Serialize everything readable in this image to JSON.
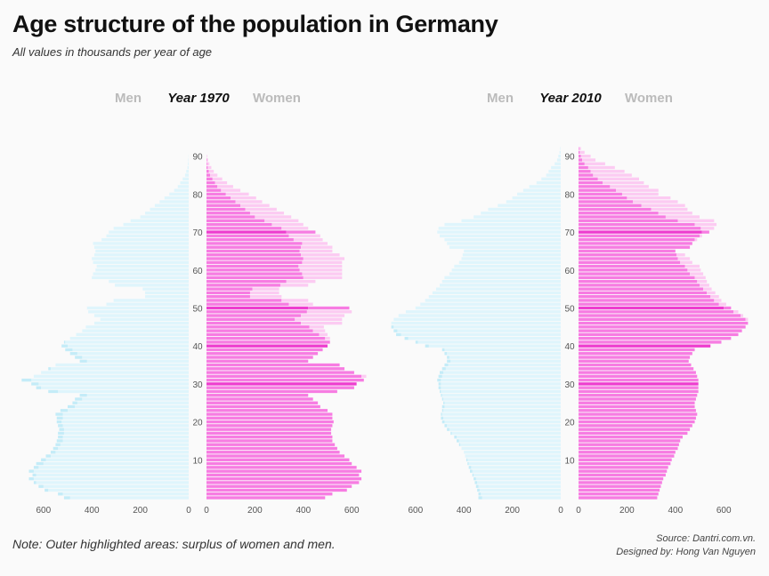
{
  "title": "Age structure of the population in Germany",
  "subtitle": "All values in thousands per year of age",
  "note": "Note: Outer highlighted areas: surplus of women and men.",
  "source": "Source: Dantri.com.vn.",
  "designer": "Designed by: Hong Van Nguyen",
  "colors": {
    "men": "#dff5fc",
    "men_surplus": "#c4ecf8",
    "women": "#f77ce2",
    "women_surplus": "#fccbf2",
    "highlight_women": "#ee3dcf",
    "text_gray": "#bbbbbb"
  },
  "chart_data": [
    {
      "type": "population-pyramid",
      "year_label": "Year 1970",
      "men_label": "Men",
      "women_label": "Women",
      "age_ticks": [
        10,
        20,
        30,
        40,
        50,
        60,
        70,
        80,
        90
      ],
      "x_ticks_men": [
        600,
        400,
        200,
        0
      ],
      "x_ticks_women": [
        0,
        200,
        400,
        600
      ],
      "xlim": [
        0,
        700
      ],
      "ages": [
        0,
        1,
        2,
        3,
        4,
        5,
        6,
        7,
        8,
        9,
        10,
        11,
        12,
        13,
        14,
        15,
        16,
        17,
        18,
        19,
        20,
        21,
        22,
        23,
        24,
        25,
        26,
        27,
        28,
        29,
        30,
        31,
        32,
        33,
        34,
        35,
        36,
        37,
        38,
        39,
        40,
        41,
        42,
        43,
        44,
        45,
        46,
        47,
        48,
        49,
        50,
        51,
        52,
        53,
        54,
        55,
        56,
        57,
        58,
        59,
        60,
        61,
        62,
        63,
        64,
        65,
        66,
        67,
        68,
        69,
        70,
        71,
        72,
        73,
        74,
        75,
        76,
        77,
        78,
        79,
        80,
        81,
        82,
        83,
        84,
        85,
        86,
        87,
        88,
        89,
        90
      ],
      "men": [
        515,
        540,
        595,
        620,
        640,
        660,
        645,
        660,
        640,
        630,
        610,
        590,
        570,
        560,
        550,
        545,
        540,
        540,
        535,
        540,
        545,
        545,
        550,
        530,
        500,
        480,
        470,
        450,
        580,
        630,
        650,
        690,
        640,
        610,
        580,
        550,
        450,
        470,
        490,
        510,
        525,
        515,
        490,
        465,
        440,
        425,
        390,
        365,
        390,
        415,
        420,
        340,
        310,
        180,
        180,
        190,
        305,
        330,
        400,
        395,
        385,
        380,
        395,
        400,
        390,
        385,
        390,
        395,
        360,
        340,
        330,
        310,
        270,
        240,
        200,
        180,
        160,
        140,
        120,
        100,
        80,
        60,
        45,
        35,
        25,
        15,
        10,
        5,
        3,
        2,
        1
      ],
      "women": [
        490,
        520,
        580,
        600,
        630,
        640,
        630,
        640,
        620,
        600,
        590,
        570,
        550,
        540,
        530,
        520,
        520,
        515,
        515,
        520,
        525,
        520,
        520,
        500,
        470,
        460,
        440,
        420,
        540,
        610,
        620,
        650,
        660,
        610,
        570,
        550,
        420,
        440,
        460,
        480,
        500,
        510,
        510,
        500,
        490,
        485,
        560,
        560,
        570,
        600,
        590,
        440,
        420,
        310,
        300,
        300,
        420,
        450,
        560,
        560,
        560,
        560,
        560,
        570,
        550,
        520,
        520,
        500,
        480,
        470,
        450,
        420,
        400,
        380,
        350,
        320,
        290,
        260,
        230,
        205,
        175,
        140,
        110,
        85,
        65,
        45,
        30,
        20,
        12,
        6,
        2
      ],
      "highlight_ages": [
        30,
        40,
        50,
        70
      ]
    },
    {
      "type": "population-pyramid",
      "year_label": "Year 2010",
      "men_label": "Men",
      "women_label": "Women",
      "age_ticks": [
        10,
        20,
        30,
        40,
        50,
        60,
        70,
        80,
        90
      ],
      "x_ticks_men": [
        600,
        400,
        200,
        0
      ],
      "x_ticks_women": [
        0,
        200,
        400,
        600
      ],
      "xlim": [
        0,
        700
      ],
      "ages": [
        0,
        1,
        2,
        3,
        4,
        5,
        6,
        7,
        8,
        9,
        10,
        11,
        12,
        13,
        14,
        15,
        16,
        17,
        18,
        19,
        20,
        21,
        22,
        23,
        24,
        25,
        26,
        27,
        28,
        29,
        30,
        31,
        32,
        33,
        34,
        35,
        36,
        37,
        38,
        39,
        40,
        41,
        42,
        43,
        44,
        45,
        46,
        47,
        48,
        49,
        50,
        51,
        52,
        53,
        54,
        55,
        56,
        57,
        58,
        59,
        60,
        61,
        62,
        63,
        64,
        65,
        66,
        67,
        68,
        69,
        70,
        71,
        72,
        73,
        74,
        75,
        76,
        77,
        78,
        79,
        80,
        81,
        82,
        83,
        84,
        85,
        86,
        87,
        88,
        89,
        90,
        91,
        92
      ],
      "men": [
        340,
        340,
        345,
        350,
        355,
        360,
        365,
        375,
        380,
        385,
        390,
        395,
        400,
        410,
        420,
        430,
        440,
        455,
        470,
        480,
        490,
        495,
        495,
        490,
        490,
        485,
        490,
        495,
        500,
        505,
        505,
        510,
        505,
        500,
        490,
        480,
        470,
        470,
        480,
        490,
        560,
        600,
        645,
        680,
        690,
        700,
        700,
        690,
        670,
        640,
        600,
        580,
        560,
        545,
        530,
        515,
        500,
        490,
        480,
        460,
        450,
        440,
        420,
        410,
        405,
        400,
        460,
        470,
        480,
        500,
        510,
        505,
        480,
        410,
        360,
        330,
        300,
        260,
        225,
        200,
        180,
        155,
        130,
        100,
        80,
        60,
        50,
        40,
        25,
        15,
        10,
        5,
        2
      ],
      "women": [
        325,
        330,
        335,
        340,
        345,
        350,
        360,
        365,
        370,
        380,
        385,
        395,
        400,
        410,
        415,
        420,
        430,
        450,
        460,
        470,
        480,
        485,
        490,
        485,
        480,
        480,
        485,
        490,
        495,
        495,
        495,
        495,
        490,
        485,
        475,
        465,
        455,
        460,
        470,
        480,
        545,
        590,
        630,
        660,
        675,
        690,
        700,
        700,
        680,
        660,
        630,
        610,
        590,
        580,
        565,
        550,
        540,
        530,
        525,
        515,
        505,
        500,
        470,
        460,
        440,
        400,
        460,
        470,
        490,
        510,
        540,
        560,
        570,
        560,
        500,
        470,
        450,
        440,
        410,
        380,
        330,
        330,
        290,
        270,
        250,
        220,
        190,
        150,
        110,
        70,
        50,
        25,
        10
      ],
      "highlight_ages": [
        30,
        40,
        50,
        70
      ]
    }
  ]
}
